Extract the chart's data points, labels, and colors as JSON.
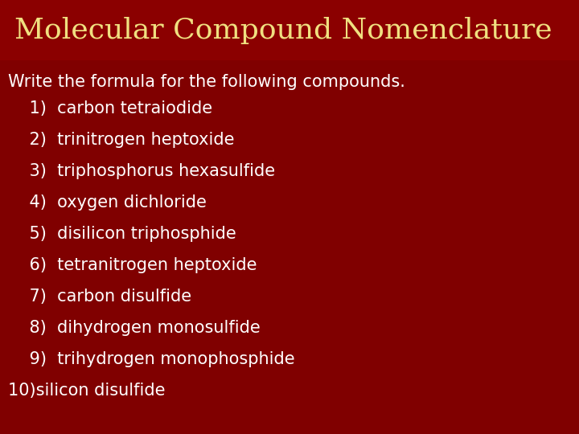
{
  "title": "Molecular Compound Nomenclature",
  "subtitle": "Write the formula for the following compounds.",
  "items": [
    "    1)  carbon tetraiodide",
    "    2)  trinitrogen heptoxide",
    "    3)  triphosphorus hexasulfide",
    "    4)  oxygen dichloride",
    "    5)  disilicon triphosphide",
    "    6)  tetranitrogen heptoxide",
    "    7)  carbon disulfide",
    "    8)  dihydrogen monosulfide",
    "    9)  trihydrogen monophosphide",
    "10)silicon disulfide"
  ],
  "bg_color": "#800000",
  "title_bg_color": "#8b0000",
  "title_color": "#f0e080",
  "subtitle_color": "#ffffff",
  "item_color": "#ffffff",
  "title_fontsize": 26,
  "subtitle_fontsize": 15,
  "item_fontsize": 15
}
